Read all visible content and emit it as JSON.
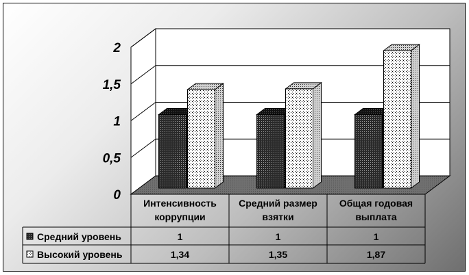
{
  "chart_data": {
    "type": "bar",
    "categories": [
      [
        "Интенсивность",
        "коррупции"
      ],
      [
        "Средний размер",
        "взятки"
      ],
      [
        "Общая годовая",
        "выплата"
      ]
    ],
    "series": [
      {
        "name": "Средний уровень",
        "values": [
          1,
          1,
          1
        ],
        "value_labels": [
          "1",
          "1",
          "1"
        ],
        "pattern": "dense-dark",
        "color": "#1a1a1a"
      },
      {
        "name": "Высокий уровень",
        "values": [
          1.34,
          1.35,
          1.87
        ],
        "value_labels": [
          "1,34",
          "1,35",
          "1,87"
        ],
        "pattern": "sparse-dots",
        "color": "#ffffff"
      }
    ],
    "yticks": [
      "0",
      "0,5",
      "1",
      "1,5",
      "2"
    ],
    "ylim": [
      0,
      2
    ],
    "grid": true,
    "legend": "data-table-below",
    "title": "",
    "xlabel": "",
    "ylabel": ""
  }
}
